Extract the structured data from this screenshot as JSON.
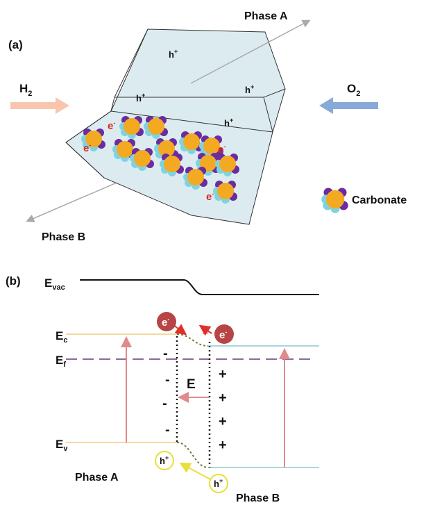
{
  "panel_a": {
    "label": "(a)",
    "phase_a": "Phase A",
    "phase_b": "Phase B",
    "h2": {
      "base": "H",
      "sub": "2"
    },
    "o2": {
      "base": "O",
      "sub": "2"
    },
    "holes": [
      {
        "base": "h",
        "sup": "+"
      },
      {
        "base": "h",
        "sup": "+"
      },
      {
        "base": "h",
        "sup": "+"
      },
      {
        "base": "h",
        "sup": "+"
      }
    ],
    "electrons": [
      {
        "base": "e",
        "sup": "-"
      },
      {
        "base": "e",
        "sup": "-"
      },
      {
        "base": "e",
        "sup": "-"
      },
      {
        "base": "e",
        "sup": "-"
      }
    ],
    "legend": "Carbonate"
  },
  "panel_b": {
    "label": "(b)",
    "levels": {
      "vac": {
        "base": "E",
        "sub": "vac"
      },
      "c": {
        "base": "E",
        "sub": "c"
      },
      "f": {
        "base": "E",
        "sub": "f"
      },
      "v": {
        "base": "E",
        "sub": "v"
      }
    },
    "field": "E",
    "negative_charges": [
      "-",
      "-",
      "-",
      "-"
    ],
    "positive_charges": [
      "+",
      "+",
      "+",
      "+"
    ],
    "electrons": [
      {
        "base": "e",
        "sup": "-"
      },
      {
        "base": "e",
        "sup": "-"
      }
    ],
    "holes": [
      {
        "base": "h",
        "sup": "+"
      },
      {
        "base": "h",
        "sup": "+"
      }
    ],
    "phase_a": "Phase A",
    "phase_b": "Phase B"
  }
}
